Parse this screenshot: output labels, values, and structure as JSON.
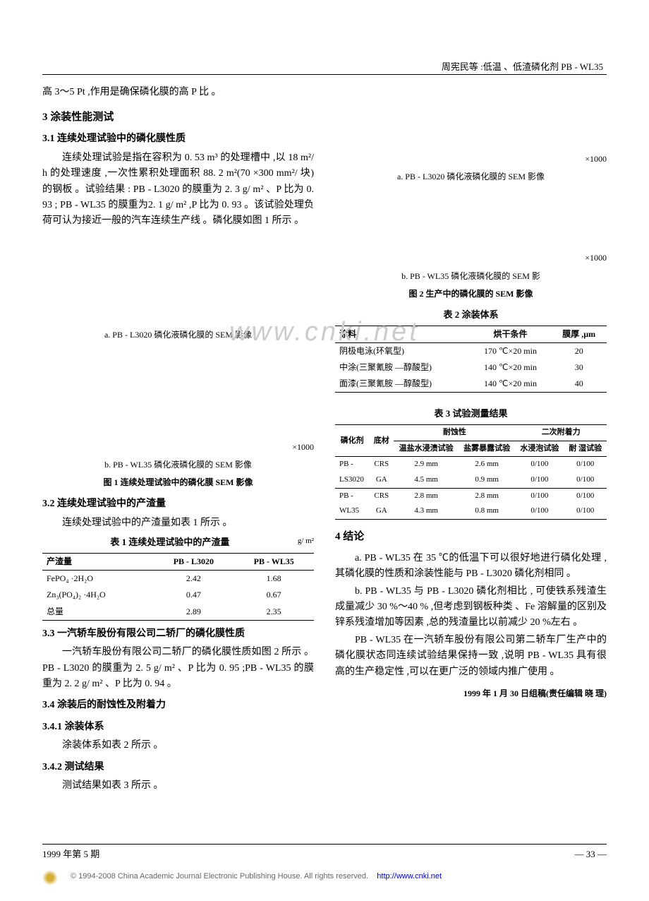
{
  "header": {
    "running_title": "周宪民等 :低温 、低渣磷化剂 PB - WL35"
  },
  "intro_line": "高 3～5 Pt ,作用是确保磷化膜的高 P 比 。",
  "section3": {
    "title": "3  涂装性能测试",
    "s31_title": "3.1  连续处理试验中的磷化膜性质",
    "s31_p1": "连续处理试验是指在容积为 0. 53 m³ 的处理槽中 ,以 18 m²/ h 的处理速度 ,一次性累积处理面积 88. 2 m²(70 ×300 mm²/ 块) 的钢板 。试验结果 : PB - L3020 的膜重为 2. 3 g/ m² 、P 比为 0. 93 ; PB - WL35 的膜重为2. 1 g/ m² ,P 比为 0. 93 。该试验处理负荷可认为接近一般的汽车连续生产线 。磷化膜如图 1 所示 。",
    "fig1a_label": "a.  PB - L3020 磷化液磷化膜的 SEM 影像",
    "fig1_mag": "×1000",
    "fig1b_label": "b.  PB - WL35 磷化液磷化膜的 SEM 影像",
    "fig1_title": "图 1  连续处理试验中的磷化膜 SEM 影像",
    "s32_title": "3.2  连续处理试验中的产渣量",
    "s32_p1": "连续处理试验中的产渣量如表 1 所示 。",
    "s33_title": "3.3  一汽轿车股份有限公司二轿厂的磷化膜性质",
    "s33_p1": "一汽轿车股份有限公司二轿厂的磷化膜性质如图 2 所示 。PB - L3020 的膜重为 2. 5 g/ m² 、P 比为 0. 95 ;PB - WL35 的膜重为 2. 2 g/ m² 、P 比为 0. 94 。",
    "s34_title": "3.4  涂装后的耐蚀性及附着力",
    "s341_title": "3.4.1  涂装体系",
    "s341_p1": "涂装体系如表 2 所示 。",
    "s342_title": "3.4.2  测试结果",
    "s342_p1": "测试结果如表 3 所示 。"
  },
  "fig2": {
    "mag1": "×1000",
    "a_label": "a.  PB - L3020 磷化液磷化膜的 SEM 影像",
    "mag2": "×1000",
    "b_label": "b.  PB - WL35 磷化液磷化膜的 SEM 影",
    "title": "图 2  生产中的磷化膜的 SEM 影像"
  },
  "table1": {
    "title": "表 1  连续处理试验中的产渣量",
    "unit": "g/ m²",
    "headers": [
      "产渣量",
      "PB - L3020",
      "PB - WL35"
    ],
    "rows": [
      [
        "FePO₄ ·2H₂O",
        "2.42",
        "1.68"
      ],
      [
        "Zn₃(PO₄)₂ ·4H₂O",
        "0.47",
        "0.67"
      ],
      [
        "总量",
        "2.89",
        "2.35"
      ]
    ]
  },
  "table2": {
    "title": "表 2  涂装体系",
    "headers": [
      "涂料",
      "烘干条件",
      "膜厚 ,µm"
    ],
    "rows": [
      [
        "阴极电泳(环氧型)",
        "170 ℃×20 min",
        "20"
      ],
      [
        "中涂(三聚氰胺 —醇酸型)",
        "140 ℃×20 min",
        "30"
      ],
      [
        "面漆(三聚氰胺 —醇酸型)",
        "140 ℃×20 min",
        "40"
      ]
    ]
  },
  "table3": {
    "title": "表 3  试验测量结果",
    "group_headers": [
      "",
      "",
      "耐蚀性",
      "二次附着力"
    ],
    "sub_headers": [
      "磷化剂",
      "底材",
      "温盐水浸渍试验",
      "盐雾暴露试验",
      "水浸泡试验",
      "耐 湿试验"
    ],
    "rows": [
      [
        "PB -",
        "CRS",
        "2.9 mm",
        "2.6 mm",
        "0/100",
        "0/100"
      ],
      [
        "LS3020",
        "GA",
        "4.5 mm",
        "0.9 mm",
        "0/100",
        "0/100"
      ],
      [
        "PB -",
        "CRS",
        "2.8 mm",
        "2.8 mm",
        "0/100",
        "0/100"
      ],
      [
        "WL35",
        "GA",
        "4.3 mm",
        "0.8 mm",
        "0/100",
        "0/100"
      ]
    ]
  },
  "section4": {
    "title": "4  结论",
    "pa": "a. PB - WL35 在 35 ℃的低温下可以很好地进行磷化处理 , 其磷化膜的性质和涂装性能与 PB - L3020 磷化剂相同 。",
    "pb": "b. PB - WL35 与 PB - L3020 磷化剂相比 , 可使铁系残渣生成量减少 30 %～40 % ,但考虑到钢板种类 、Fe 溶解量的区别及锌系残渣增加等因素 ,总的残渣量比以前减少 20 %左右 。",
    "pc": "PB - WL35 在一汽轿车股份有限公司第二轿车厂生产中的磷化膜状态同连续试验结果保持一致 ,说明 PB - WL35 具有很高的生产稳定性 ,可以在更广泛的领域内推广使用 。"
  },
  "submit": "1999 年 1 月 30 日组稿(责任编辑  晓  理)",
  "footer": {
    "left": "1999 年第 5 期",
    "right": "— 33 —"
  },
  "copyright": {
    "text": "© 1994-2008 China Academic Journal Electronic Publishing House. All rights reserved.",
    "url": "http://www.cnki.net"
  },
  "watermark": "www.cnki.net"
}
